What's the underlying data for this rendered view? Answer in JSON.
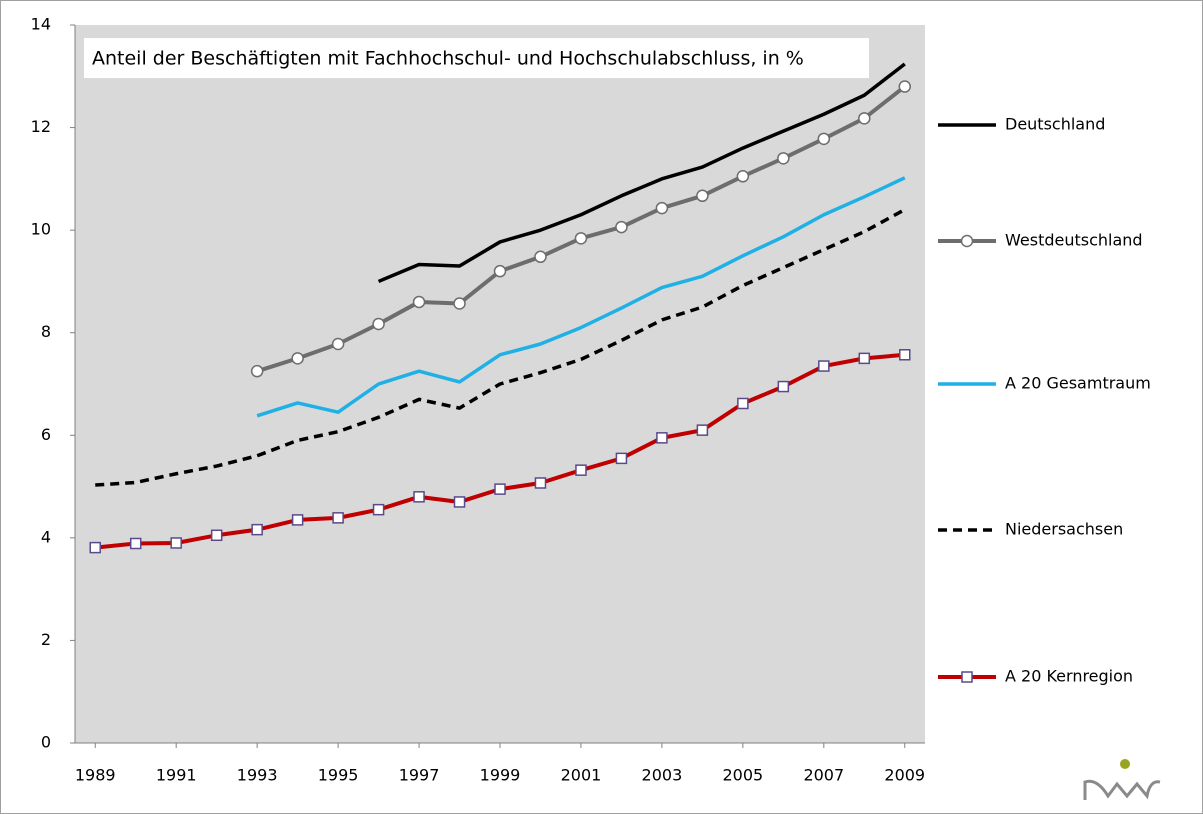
{
  "chart_data": {
    "type": "line",
    "title": "Anteil der Beschäftigten mit Fachhochschul- und Hochschulabschluss, in %",
    "x": [
      1989,
      1990,
      1991,
      1992,
      1993,
      1994,
      1995,
      1996,
      1997,
      1998,
      1999,
      2000,
      2001,
      2002,
      2003,
      2004,
      2005,
      2006,
      2007,
      2008,
      2009
    ],
    "xlim": [
      1988.5,
      2009.5
    ],
    "xticks": [
      1989,
      1991,
      1993,
      1995,
      1997,
      1999,
      2001,
      2003,
      2005,
      2007,
      2009
    ],
    "ylim": [
      0,
      14
    ],
    "yticks": [
      0,
      2,
      4,
      6,
      8,
      10,
      12,
      14
    ],
    "series": [
      {
        "name": "Deutschland",
        "color": "#000000",
        "values": [
          null,
          null,
          null,
          null,
          null,
          null,
          null,
          9.0,
          9.33,
          9.3,
          9.77,
          10.0,
          10.3,
          10.67,
          11.0,
          11.23,
          11.6,
          11.93,
          12.26,
          12.63,
          13.24
        ]
      },
      {
        "name": "Westdeutschland",
        "color": "#6d6d6d",
        "marker": "circle",
        "values": [
          null,
          null,
          null,
          null,
          7.25,
          7.5,
          7.78,
          8.17,
          8.6,
          8.57,
          9.2,
          9.48,
          9.84,
          10.06,
          10.43,
          10.67,
          11.05,
          11.4,
          11.78,
          12.18,
          12.8
        ]
      },
      {
        "name": "A 20 Gesamtraum",
        "color": "#1fb0e6",
        "values": [
          null,
          null,
          null,
          null,
          6.38,
          6.63,
          6.45,
          7.0,
          7.25,
          7.04,
          7.57,
          7.78,
          8.1,
          8.48,
          8.88,
          9.1,
          9.5,
          9.87,
          10.3,
          10.65,
          11.02
        ]
      },
      {
        "name": "Niedersachsen",
        "color": "#000000",
        "dashed": true,
        "values": [
          5.03,
          5.08,
          5.25,
          5.4,
          5.6,
          5.9,
          6.07,
          6.35,
          6.7,
          6.53,
          7.0,
          7.22,
          7.48,
          7.85,
          8.25,
          8.5,
          8.92,
          9.27,
          9.62,
          9.97,
          10.4
        ]
      },
      {
        "name": "A 20 Kernregion",
        "color": "#c00000",
        "marker": "square",
        "marker_color": "#5a4a8a",
        "values": [
          3.81,
          3.89,
          3.9,
          4.05,
          4.16,
          4.35,
          4.39,
          4.55,
          4.8,
          4.7,
          4.95,
          5.07,
          5.32,
          5.55,
          5.95,
          6.1,
          6.62,
          6.95,
          7.35,
          7.5,
          7.57
        ]
      }
    ],
    "background": "#d9d9d9"
  }
}
